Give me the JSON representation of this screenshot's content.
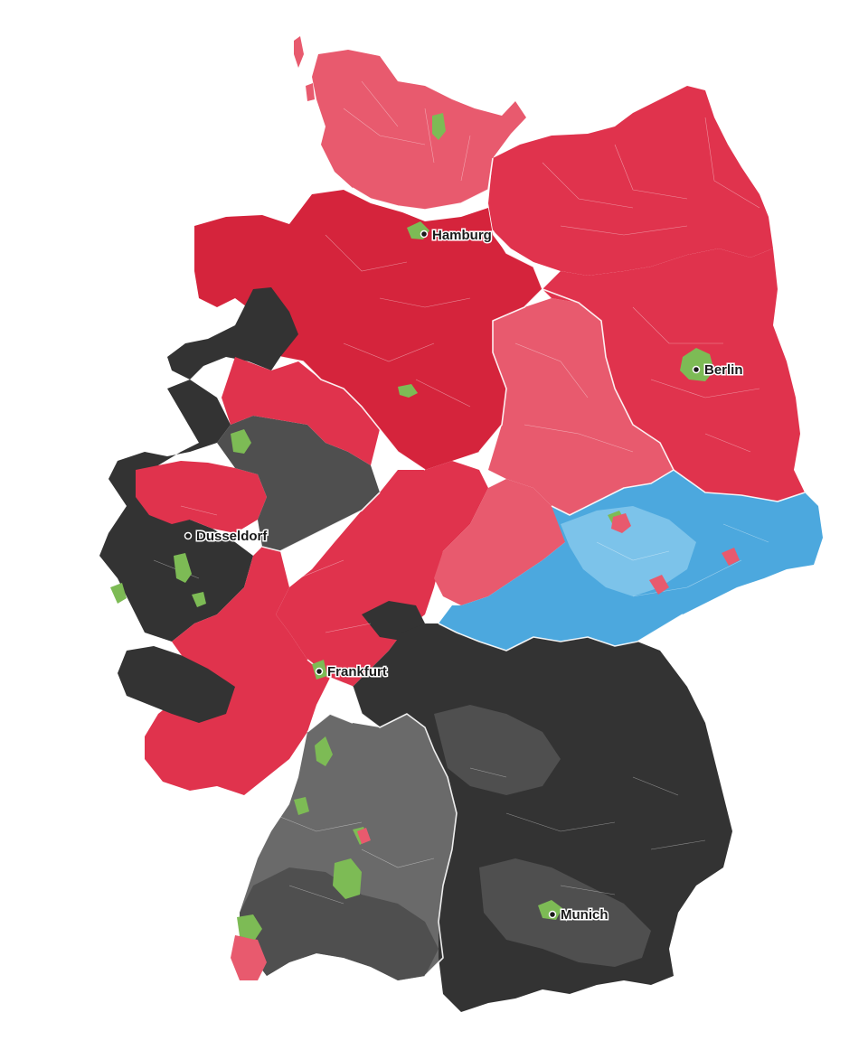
{
  "colors": {
    "red_light": "#e85a6e",
    "red": "#e0334d",
    "red_dark": "#d5243c",
    "gray_dark": "#333333",
    "gray_mid": "#4f4f4f",
    "gray_light": "#6a6a6a",
    "blue": "#4ca8de",
    "blue_light": "#7cc3ea",
    "green": "#7dbb55"
  },
  "cities": [
    {
      "name": "Hamburg"
    },
    {
      "name": "Berlin"
    },
    {
      "name": "Dusseldorf"
    },
    {
      "name": "Frankfurt"
    },
    {
      "name": "Munich"
    }
  ]
}
